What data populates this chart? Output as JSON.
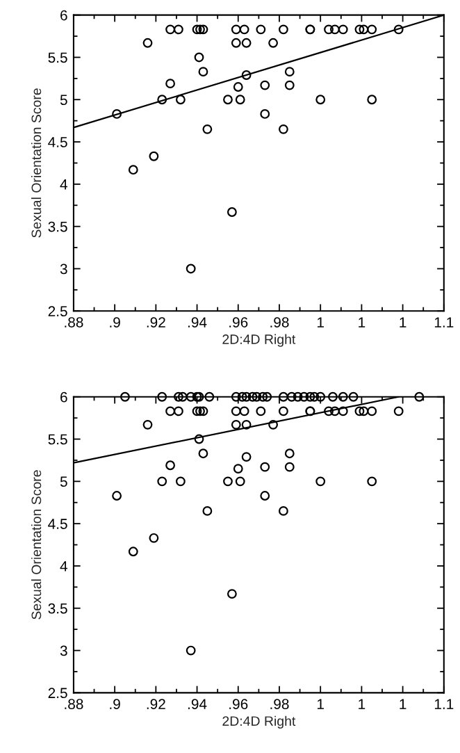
{
  "chart_data": [
    {
      "type": "scatter",
      "xlabel": "2D:4D Right",
      "ylabel": "Sexual Orientation Score",
      "xlim": [
        0.88,
        1.06
      ],
      "ylim": [
        2.5,
        6
      ],
      "xticks": [
        {
          "value": 0.88,
          "label": ".88"
        },
        {
          "value": 0.89,
          "label": null
        },
        {
          "value": 0.9,
          "label": ".9"
        },
        {
          "value": 0.91,
          "label": null
        },
        {
          "value": 0.92,
          "label": ".92"
        },
        {
          "value": 0.93,
          "label": null
        },
        {
          "value": 0.94,
          "label": ".94"
        },
        {
          "value": 0.95,
          "label": null
        },
        {
          "value": 0.96,
          "label": ".96"
        },
        {
          "value": 0.97,
          "label": null
        },
        {
          "value": 0.98,
          "label": ".98"
        },
        {
          "value": 0.99,
          "label": null
        },
        1,
        {
          "value": 1.01,
          "label": null
        },
        {
          "value": 1.02,
          "label": "1"
        },
        {
          "value": 1.03,
          "label": null
        },
        {
          "value": 1.04,
          "label": "1"
        },
        {
          "value": 1.05,
          "label": null
        },
        {
          "value": 1.06,
          "label": "1.1"
        }
      ],
      "yticks": [
        2.5,
        {
          "value": 2.75,
          "label": null
        },
        3,
        {
          "value": 3.25,
          "label": null
        },
        3.5,
        {
          "value": 3.75,
          "label": null
        },
        4,
        {
          "value": 4.25,
          "label": null
        },
        4.5,
        {
          "value": 4.75,
          "label": null
        },
        5,
        {
          "value": 5.25,
          "label": null
        },
        5.5,
        {
          "value": 5.75,
          "label": null
        },
        6
      ],
      "grid": false,
      "series": [
        {
          "color": "#000000",
          "marker": "circle",
          "x": [
            0.927,
            0.931,
            0.94,
            0.9415,
            0.943,
            0.959,
            0.963,
            0.971,
            0.982,
            0.995,
            0.995,
            1.004,
            1.007,
            1.011,
            1.019,
            1.021,
            1.025,
            1.038,
            0.916,
            0.959,
            0.964,
            0.977,
            0.941,
            0.943,
            0.985,
            0.964,
            0.927,
            0.973,
            0.985,
            0.96,
            0.923,
            0.932,
            0.955,
            0.961,
            1.0,
            1.025,
            0.901,
            0.973,
            0.945,
            0.982,
            0.919,
            0.909,
            0.957,
            0.937
          ],
          "values": [
            5.83,
            5.83,
            5.83,
            5.83,
            5.83,
            5.83,
            5.83,
            5.83,
            5.83,
            5.83,
            5.83,
            5.83,
            5.83,
            5.83,
            5.83,
            5.83,
            5.83,
            5.83,
            5.67,
            5.67,
            5.67,
            5.67,
            5.5,
            5.33,
            5.33,
            5.29,
            5.19,
            5.17,
            5.17,
            5.15,
            5.0,
            5.0,
            5.0,
            5.0,
            5.0,
            5.0,
            4.83,
            4.83,
            4.65,
            4.65,
            4.33,
            4.17,
            3.67,
            3.0
          ]
        },
        {
          "type": "line",
          "color": "#000000",
          "x": [
            0.88,
            1.06
          ],
          "values": [
            4.67,
            6.0
          ],
          "line_style": "solid"
        }
      ]
    },
    {
      "type": "scatter",
      "xlabel": "2D:4D Right",
      "ylabel": "Sexual Orientation Score",
      "xlim": [
        0.88,
        1.06
      ],
      "ylim": [
        2.5,
        6
      ],
      "xticks": [
        {
          "value": 0.88,
          "label": ".88"
        },
        {
          "value": 0.89,
          "label": null
        },
        {
          "value": 0.9,
          "label": ".9"
        },
        {
          "value": 0.91,
          "label": null
        },
        {
          "value": 0.92,
          "label": ".92"
        },
        {
          "value": 0.93,
          "label": null
        },
        {
          "value": 0.94,
          "label": ".94"
        },
        {
          "value": 0.95,
          "label": null
        },
        {
          "value": 0.96,
          "label": ".96"
        },
        {
          "value": 0.97,
          "label": null
        },
        {
          "value": 0.98,
          "label": ".98"
        },
        {
          "value": 0.99,
          "label": null
        },
        1,
        {
          "value": 1.01,
          "label": null
        },
        {
          "value": 1.02,
          "label": "1"
        },
        {
          "value": 1.03,
          "label": null
        },
        {
          "value": 1.04,
          "label": "1"
        },
        {
          "value": 1.05,
          "label": null
        },
        {
          "value": 1.06,
          "label": "1.1"
        }
      ],
      "yticks": [
        2.5,
        {
          "value": 2.75,
          "label": null
        },
        3,
        {
          "value": 3.25,
          "label": null
        },
        3.5,
        {
          "value": 3.75,
          "label": null
        },
        4,
        {
          "value": 4.25,
          "label": null
        },
        4.5,
        {
          "value": 4.75,
          "label": null
        },
        5,
        {
          "value": 5.25,
          "label": null
        },
        5.5,
        {
          "value": 5.75,
          "label": null
        },
        6
      ],
      "grid": false,
      "series": [
        {
          "color": "#000000",
          "marker": "circle",
          "x": [
            0.905,
            0.923,
            0.931,
            0.933,
            0.937,
            0.94,
            0.941,
            0.946,
            0.959,
            0.962,
            0.964,
            0.967,
            0.969,
            0.972,
            0.974,
            0.982,
            0.986,
            0.989,
            0.992,
            0.995,
            0.997,
            1.0,
            1.006,
            1.011,
            1.016,
            1.048,
            0.927,
            0.931,
            0.94,
            0.9415,
            0.943,
            0.959,
            0.963,
            0.971,
            0.982,
            0.995,
            0.995,
            1.004,
            1.007,
            1.011,
            1.019,
            1.021,
            1.025,
            1.038,
            0.916,
            0.959,
            0.964,
            0.977,
            0.941,
            0.943,
            0.985,
            0.964,
            0.927,
            0.973,
            0.985,
            0.96,
            0.923,
            0.932,
            0.955,
            0.961,
            1.0,
            1.025,
            0.901,
            0.973,
            0.945,
            0.982,
            0.919,
            0.909,
            0.957,
            0.937
          ],
          "values": [
            6,
            6,
            6,
            6,
            6,
            6,
            6,
            6,
            6,
            6,
            6,
            6,
            6,
            6,
            6,
            6,
            6,
            6,
            6,
            6,
            6,
            6,
            6,
            6,
            6,
            6,
            5.83,
            5.83,
            5.83,
            5.83,
            5.83,
            5.83,
            5.83,
            5.83,
            5.83,
            5.83,
            5.83,
            5.83,
            5.83,
            5.83,
            5.83,
            5.83,
            5.83,
            5.83,
            5.67,
            5.67,
            5.67,
            5.67,
            5.5,
            5.33,
            5.33,
            5.29,
            5.19,
            5.17,
            5.17,
            5.15,
            5.0,
            5.0,
            5.0,
            5.0,
            5.0,
            5.0,
            4.83,
            4.83,
            4.65,
            4.65,
            4.33,
            4.17,
            3.67,
            3.0
          ]
        },
        {
          "type": "line",
          "color": "#000000",
          "x": [
            0.88,
            1.038
          ],
          "values": [
            5.22,
            6.0
          ],
          "line_style": "solid"
        }
      ]
    }
  ]
}
